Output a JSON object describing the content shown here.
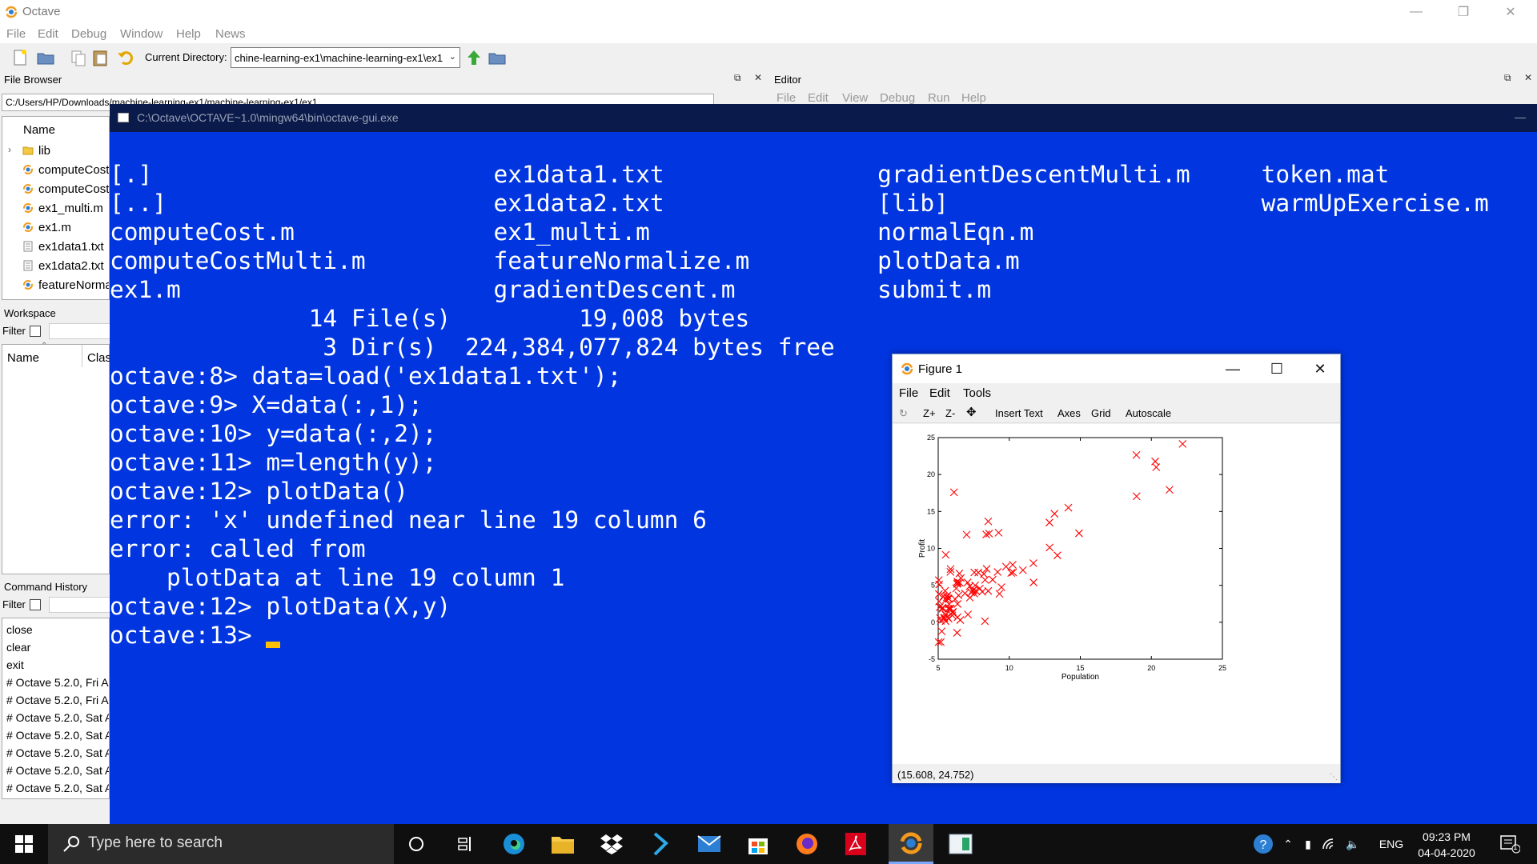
{
  "app": {
    "title": "Octave",
    "menu": [
      "File",
      "Edit",
      "Debug",
      "Window",
      "Help",
      "News"
    ]
  },
  "toolbar": {
    "current_directory_label": "Current Directory:",
    "current_directory_value": "chine-learning-ex1\\machine-learning-ex1\\ex1"
  },
  "file_browser": {
    "title": "File Browser",
    "path": "C:/Users/HP/Downloads/machine-learning-ex1/machine-learning-ex1/ex1",
    "column_name": "Name",
    "items": [
      {
        "name": "lib",
        "icon": "folder-icon"
      },
      {
        "name": "computeCost",
        "icon": "octave-file-icon"
      },
      {
        "name": "computeCost",
        "icon": "octave-file-icon"
      },
      {
        "name": "ex1_multi.m",
        "icon": "octave-file-icon"
      },
      {
        "name": "ex1.m",
        "icon": "octave-file-icon"
      },
      {
        "name": "ex1data1.txt",
        "icon": "text-file-icon"
      },
      {
        "name": "ex1data2.txt",
        "icon": "text-file-icon"
      },
      {
        "name": "featureNorma",
        "icon": "octave-file-icon"
      }
    ]
  },
  "editor": {
    "title": "Editor",
    "menu": [
      "File",
      "Edit",
      "View",
      "Debug",
      "Run",
      "Help"
    ]
  },
  "workspace": {
    "title": "Workspace",
    "filter_label": "Filter",
    "col_name": "Name",
    "col_class": "Clas"
  },
  "command_history": {
    "title": "Command History",
    "filter_label": "Filter",
    "items": [
      "close",
      "clear",
      "exit",
      "# Octave 5.2.0, Fri A",
      "# Octave 5.2.0, Fri A",
      "# Octave 5.2.0, Sat A",
      "# Octave 5.2.0, Sat A",
      "# Octave 5.2.0, Sat A",
      "# Octave 5.2.0, Sat A",
      "# Octave 5.2.0, Sat A"
    ]
  },
  "console": {
    "title": "C:\\Octave\\OCTAVE~1.0\\mingw64\\bin\\octave-gui.exe",
    "lines": [
      "[.]                        ex1data1.txt               gradientDescentMulti.m     token.mat",
      "[..]                       ex1data2.txt               [lib]                      warmUpExercise.m",
      "computeCost.m              ex1_multi.m                normalEqn.m",
      "computeCostMulti.m         featureNormalize.m         plotData.m",
      "ex1.m                      gradientDescent.m          submit.m",
      "              14 File(s)         19,008 bytes",
      "               3 Dir(s)  224,384,077,824 bytes free",
      "octave:8> data=load('ex1data1.txt');",
      "octave:9> X=data(:,1);",
      "octave:10> y=data(:,2);",
      "octave:11> m=length(y);",
      "octave:12> plotData()",
      "error: 'x' undefined near line 19 column 6",
      "error: called from",
      "    plotData at line 19 column 1",
      "octave:12> plotData(X,y)"
    ],
    "prompt": "octave:13> "
  },
  "figure": {
    "title": "Figure 1",
    "menu": [
      "File",
      "Edit",
      "Tools"
    ],
    "toolbar": [
      "Z+",
      "Z-",
      "Insert Text",
      "Axes",
      "Grid",
      "Autoscale"
    ],
    "status": "(15.608, 24.752)"
  },
  "chart_data": {
    "type": "scatter",
    "title": "",
    "xlabel": "Population",
    "ylabel": "Profit",
    "xlim": [
      5,
      25
    ],
    "ylim": [
      -5,
      25
    ],
    "xticks": [
      5,
      10,
      15,
      20,
      25
    ],
    "yticks": [
      -5,
      0,
      5,
      10,
      15,
      20,
      25
    ],
    "marker": "x",
    "color": "#ff0000",
    "grid": false,
    "points": [
      [
        6.11,
        17.59
      ],
      [
        5.53,
        9.13
      ],
      [
        8.52,
        13.66
      ],
      [
        7.0,
        11.85
      ],
      [
        5.86,
        6.82
      ],
      [
        8.38,
        11.89
      ],
      [
        7.48,
        4.35
      ],
      [
        8.58,
        12.0
      ],
      [
        6.49,
        6.6
      ],
      [
        5.05,
        3.82
      ],
      [
        5.71,
        3.25
      ],
      [
        14.16,
        15.51
      ],
      [
        5.73,
        3.16
      ],
      [
        8.41,
        7.23
      ],
      [
        5.64,
        0.72
      ],
      [
        5.37,
        3.51
      ],
      [
        6.37,
        5.3
      ],
      [
        5.13,
        0.56
      ],
      [
        6.43,
        3.65
      ],
      [
        7.07,
        5.39
      ],
      [
        6.19,
        3.14
      ],
      [
        20.27,
        21.77
      ],
      [
        5.49,
        4.26
      ],
      [
        6.33,
        5.19
      ],
      [
        5.56,
        3.08
      ],
      [
        18.95,
        22.64
      ],
      [
        12.83,
        13.5
      ],
      [
        10.96,
        7.05
      ],
      [
        13.18,
        14.69
      ],
      [
        22.2,
        24.15
      ],
      [
        5.25,
        -1.22
      ],
      [
        6.59,
        5.99
      ],
      [
        9.25,
        12.13
      ],
      [
        5.89,
        1.85
      ],
      [
        8.21,
        6.54
      ],
      [
        7.93,
        4.56
      ],
      [
        8.1,
        4.12
      ],
      [
        5.61,
        3.39
      ],
      [
        12.84,
        10.12
      ],
      [
        6.35,
        5.5
      ],
      [
        5.41,
        0.56
      ],
      [
        6.88,
        3.91
      ],
      [
        11.71,
        5.39
      ],
      [
        5.77,
        2.44
      ],
      [
        7.82,
        6.73
      ],
      [
        7.09,
        1.05
      ],
      [
        5.07,
        5.13
      ],
      [
        5.8,
        1.84
      ],
      [
        11.7,
        8.0
      ],
      [
        5.54,
        1.02
      ],
      [
        7.54,
        6.75
      ],
      [
        5.31,
        1.84
      ],
      [
        7.42,
        4.29
      ],
      [
        7.6,
        4.99
      ],
      [
        6.03,
        1.42
      ],
      [
        6.33,
        -1.42
      ],
      [
        6.36,
        2.48
      ],
      [
        6.27,
        4.6
      ],
      [
        5.64,
        3.62
      ],
      [
        9.31,
        3.85
      ],
      [
        9.45,
        4.75
      ],
      [
        8.83,
        5.77
      ],
      [
        5.18,
        -2.68
      ],
      [
        21.28,
        17.93
      ],
      [
        14.91,
        12.05
      ],
      [
        18.96,
        17.05
      ],
      [
        7.22,
        4.89
      ],
      [
        8.3,
        5.74
      ],
      [
        10.24,
        7.78
      ],
      [
        5.5,
        1.02
      ],
      [
        20.34,
        20.99
      ],
      [
        10.14,
        6.68
      ],
      [
        7.34,
        4.03
      ],
      [
        6.01,
        1.28
      ],
      [
        7.23,
        3.34
      ],
      [
        5.03,
        -2.68
      ],
      [
        6.55,
        0.3
      ],
      [
        7.54,
        3.88
      ],
      [
        5.04,
        5.7
      ],
      [
        10.27,
        6.75
      ],
      [
        5.11,
        2.06
      ],
      [
        5.73,
        0.48
      ],
      [
        5.19,
        0.2
      ],
      [
        6.36,
        0.68
      ],
      [
        9.77,
        7.54
      ],
      [
        6.52,
        5.34
      ],
      [
        8.52,
        4.24
      ],
      [
        9.18,
        6.8
      ],
      [
        6.0,
        0.93
      ],
      [
        5.52,
        0.15
      ],
      [
        5.06,
        2.82
      ],
      [
        5.71,
        1.85
      ],
      [
        7.64,
        4.29
      ],
      [
        5.87,
        7.2
      ],
      [
        5.31,
        1.99
      ],
      [
        8.29,
        0.14
      ],
      [
        13.39,
        9.06
      ],
      [
        5.44,
        0.62
      ]
    ]
  },
  "taskbar": {
    "search_placeholder": "Type here to search",
    "language": "ENG",
    "time": "09:23 PM",
    "date": "04-04-2020",
    "notification_count": "1"
  }
}
